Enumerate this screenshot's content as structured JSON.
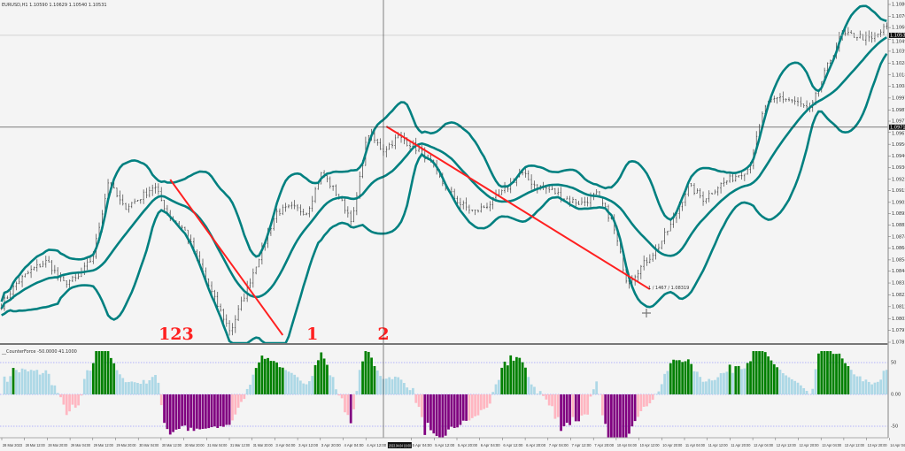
{
  "window": {
    "symbol_header": "EURUSD,H1  1.10590 1.10629 1.10540 1.10531",
    "indicator_header": "__CounterForce -50.0000 41.1000"
  },
  "colors": {
    "background": "#f4f4f4",
    "bars": "#444444",
    "bands": "#008080",
    "trendline": "#ff2020",
    "hist_pos": "#add8e6",
    "hist_neg": "#ffb6c1",
    "hist_strong_up": "#008000",
    "hist_strong_down": "#800080",
    "level_line": "#7070ff"
  },
  "chart_data": [
    {
      "type": "ohlc",
      "symbol": "EURUSD",
      "timeframe": "H1",
      "ylim": [
        1.0781,
        1.10805
      ],
      "close_path": [
        1.08139,
        1.08335,
        1.08453,
        1.08531,
        1.08335,
        1.08375,
        1.08571,
        1.09237,
        1.09002,
        1.0908,
        1.09198,
        1.08923,
        1.08806,
        1.08492,
        1.08179,
        1.07904,
        1.08257,
        1.0861,
        1.08963,
        1.09002,
        1.08963,
        1.09315,
        1.09119,
        1.08884,
        1.09668,
        1.09511,
        1.09629,
        1.09551,
        1.09433,
        1.09198,
        1.09041,
        1.08963,
        1.09041,
        1.09159,
        1.09315,
        1.09198,
        1.09159,
        1.0908,
        1.09041,
        1.09119,
        1.08884,
        1.08335,
        1.08492,
        1.08649,
        1.08884,
        1.09198,
        1.0908,
        1.09198,
        1.09276,
        1.09355,
        1.09903,
        1.09982,
        1.09943,
        1.09864,
        1.10217,
        1.10531,
        1.10531,
        1.10491,
        1.10609
      ],
      "overlay": "Bollinger Bands",
      "price_axis_labels": [
        "1.10805",
        "1.10700",
        "1.10600",
        "1.10495",
        "1.10390",
        "1.10285",
        "1.10180",
        "1.10080",
        "1.09975",
        "1.09870",
        "1.09770",
        "1.09670",
        "1.09565",
        "1.09460",
        "1.09360",
        "1.09255",
        "1.09155",
        "1.09050",
        "1.08950",
        "1.08850",
        "1.08745",
        "1.08645",
        "1.08540",
        "1.08440",
        "1.08335",
        "1.08230",
        "1.08125",
        "1.08020",
        "1.07915",
        "1.07810"
      ],
      "current_price": "1.10531",
      "crosshair_price": "1.09717",
      "crosshair_time": "2023.04.04 16:00",
      "trendlines": [
        {
          "from_bar": 57,
          "from_price": 1.09252,
          "to_bar": 95,
          "to_price": 1.07873
        },
        {
          "from_bar": 130,
          "from_price": 1.09723,
          "to_bar": 219,
          "to_price": 1.0828
        }
      ],
      "annotations": [
        {
          "text": "123",
          "bar": 59
        },
        {
          "text": "1",
          "bar": 105
        },
        {
          "text": "2",
          "bar": 129
        }
      ],
      "small_label": "1 / 1467 / 1.08319",
      "time_axis_labels": [
        "28 Mar 2023",
        "28 Mar 12:00",
        "28 Mar 20:00",
        "29 Mar 04:00",
        "29 Mar 12:00",
        "29 Mar 20:00",
        "30 Mar 04:00",
        "30 Mar 12:00",
        "30 Mar 20:00",
        "31 Mar 04:00",
        "31 Mar 12:00",
        "31 Mar 20:00",
        "3 Apr 04:00",
        "3 Apr 12:00",
        "3 Apr 20:00",
        "4 Apr 04:00",
        "4 Apr 12:00",
        "",
        "5 Apr 04:00",
        "5 Apr 12:00",
        "5 Apr 20:00",
        "6 Apr 04:00",
        "6 Apr 12:00",
        "6 Apr 20:00",
        "7 Apr 04:00",
        "7 Apr 12:00",
        "7 Apr 20:00",
        "10 Apr 04:00",
        "10 Apr 12:00",
        "10 Apr 20:00",
        "11 Apr 04:00",
        "11 Apr 12:00",
        "11 Apr 20:00",
        "12 Apr 04:00",
        "12 Apr 12:00",
        "12 Apr 20:00",
        "13 Apr 04:00",
        "13 Apr 12:00",
        "13 Apr 20:00",
        "14 Apr 04:00"
      ]
    },
    {
      "type": "histogram",
      "name": "__CounterForce",
      "ylim": [
        -70,
        70
      ],
      "levels": [
        50,
        0,
        -50
      ],
      "level_labels": [
        "50",
        "0.00",
        "-50"
      ]
    }
  ]
}
